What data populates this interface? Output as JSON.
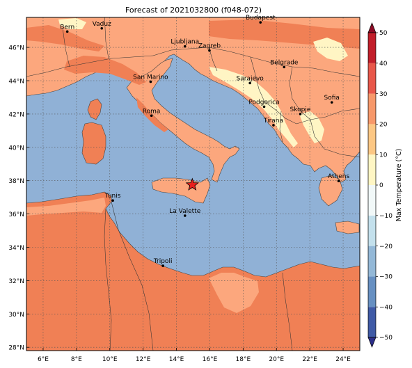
{
  "title": "Forecast of 2021032800 (f048-072)",
  "map": {
    "lat_ticks": [
      "46°N",
      "44°N",
      "42°N",
      "40°N",
      "38°N",
      "36°N",
      "34°N",
      "32°N",
      "30°N",
      "28°N"
    ],
    "lon_ticks": [
      "6°E",
      "8°E",
      "10°E",
      "12°E",
      "14°E",
      "16°E",
      "18°E",
      "20°E",
      "22°E",
      "24°E"
    ],
    "lat_range": [
      27.8,
      47.8
    ],
    "lon_range": [
      5.0,
      25.0
    ],
    "grid": true,
    "cities": [
      {
        "name": "Bern",
        "lon": 7.45,
        "lat": 46.95
      },
      {
        "name": "Vaduz",
        "lon": 9.52,
        "lat": 47.14
      },
      {
        "name": "Budapest",
        "lon": 19.04,
        "lat": 47.5
      },
      {
        "name": "Ljubljana",
        "lon": 14.51,
        "lat": 46.06
      },
      {
        "name": "Zagreb",
        "lon": 15.98,
        "lat": 45.81
      },
      {
        "name": "Belgrade",
        "lon": 20.46,
        "lat": 44.82
      },
      {
        "name": "San Marino",
        "lon": 12.45,
        "lat": 43.94
      },
      {
        "name": "Sarajevo",
        "lon": 18.41,
        "lat": 43.86
      },
      {
        "name": "Sofia",
        "lon": 23.32,
        "lat": 42.7
      },
      {
        "name": "Podgorica",
        "lon": 19.26,
        "lat": 42.44
      },
      {
        "name": "Skopje",
        "lon": 21.43,
        "lat": 42.0
      },
      {
        "name": "Roma",
        "lon": 12.5,
        "lat": 41.9
      },
      {
        "name": "Tirana",
        "lon": 19.82,
        "lat": 41.33
      },
      {
        "name": "Athens",
        "lon": 23.73,
        "lat": 37.98
      },
      {
        "name": "Tunis",
        "lon": 10.18,
        "lat": 36.81
      },
      {
        "name": "La Valette",
        "lon": 14.51,
        "lat": 35.9
      },
      {
        "name": "Tripoli",
        "lon": 13.19,
        "lat": 32.89
      }
    ],
    "marker": {
      "symbol": "star",
      "lon": 14.95,
      "lat": 37.75,
      "color": "#e8201c"
    }
  },
  "colorbar": {
    "label": "Max Temperature (°C)",
    "ticks": [
      "50",
      "40",
      "30",
      "20",
      "10",
      "0",
      "−10",
      "−20",
      "−30",
      "−40",
      "−50"
    ],
    "range": [
      -50,
      50
    ],
    "colors": [
      "#2c2e89",
      "#3f5aa6",
      "#6790c2",
      "#93b8d7",
      "#c3e0ec",
      "#f1f8f8",
      "#fff6c4",
      "#fcc784",
      "#f7986a",
      "#e8574a",
      "#c21e2a",
      "#8c0b26"
    ]
  },
  "legend_colors": {
    "sea": "#90b1d6",
    "warm": "#f08055",
    "mild": "#fca77d",
    "cool": "#fff5c4"
  }
}
